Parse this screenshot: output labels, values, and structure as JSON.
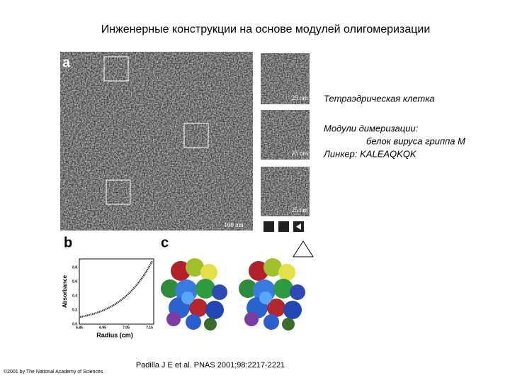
{
  "title": "Инженерные конструкции на основе модулей олигомеризации",
  "figure": {
    "panel_a": {
      "label": "a",
      "scale_bars": [
        "25 nm",
        "25 nm",
        "25 nm"
      ],
      "main_scale_bar": "100 nm"
    },
    "panel_b": {
      "label": "b",
      "y_label": "Absorbance",
      "x_label": "Radius (cm)",
      "yticks": [
        "0.0",
        "0.2",
        "0.4",
        "0.6",
        "0.8"
      ],
      "xticks": [
        "6.85",
        "6.95",
        "7.05",
        "7.15"
      ]
    },
    "panel_c": {
      "label": "c"
    }
  },
  "notes": [
    "Тетраэдрическая клетка",
    "Модули димеризации:",
    "белок вируса гриппа М",
    "Линкер: KALEAQKQK"
  ],
  "citation": "Padilla J E et al. PNAS 2001;98:2217-2221",
  "copyright": "©2001 by The National Academy of Sciences"
}
